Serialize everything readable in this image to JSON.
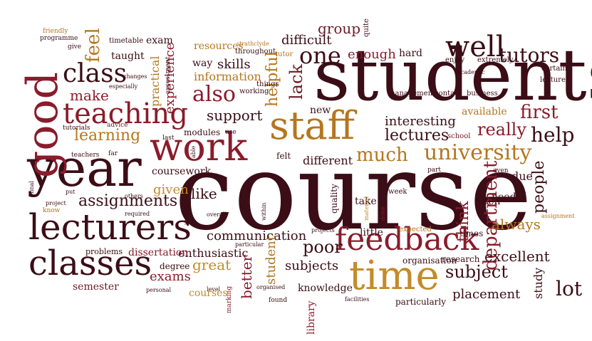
{
  "palette": [
    "#3b0d17",
    "#8a1c2b",
    "#b5761f",
    "#c38b2a",
    "#6e1a25",
    "#d0a050"
  ],
  "words": [
    "course",
    "students",
    "year",
    "good",
    "work",
    "staff",
    "time",
    "lecturers",
    "classes",
    "feedback",
    "teaching",
    "well",
    "class",
    "university",
    "one",
    "also",
    "tutors",
    "help",
    "much",
    "first",
    "really",
    "department",
    "lectures",
    "subject",
    "poor",
    "lot",
    "people",
    "interesting",
    "assignments",
    "learning",
    "feel",
    "group",
    "support",
    "make",
    "experience",
    "skills",
    "helpful",
    "lack",
    "difficult",
    "enough",
    "communication",
    "given",
    "like",
    "excellent",
    "always",
    "think",
    "great",
    "exams",
    "enthusiastic",
    "placement",
    "subjects",
    "better",
    "student",
    "dissertation",
    "problems",
    "semester",
    "courses",
    "library",
    "knowledge",
    "different",
    "information",
    "resources",
    "available",
    "new",
    "practical",
    "taught",
    "exam",
    "timetable",
    "quite",
    "hard",
    "tutor",
    "way",
    "modules",
    "organisation",
    "particularly",
    "study",
    "due",
    "need",
    "often",
    "research",
    "times",
    "expected",
    "little",
    "take",
    "quality",
    "week",
    "coursework",
    "felt",
    "school",
    "business",
    "contact",
    "management",
    "lecture",
    "certain",
    "enjoy",
    "extremely",
    "academic",
    "throughout",
    "strathclyde",
    "programme",
    "friendly",
    "give",
    "assessment",
    "changes",
    "especially",
    "advice",
    "tutorials",
    "teachers",
    "last",
    "far",
    "use",
    "things",
    "working",
    "able",
    "final",
    "put",
    "project",
    "know",
    "others",
    "required",
    "useful",
    "overall",
    "within",
    "material",
    "done",
    "projects",
    "particular",
    "level",
    "marking",
    "found",
    "organised",
    "facilities",
    "personal",
    "degree",
    "part",
    "even",
    "assignment"
  ]
}
